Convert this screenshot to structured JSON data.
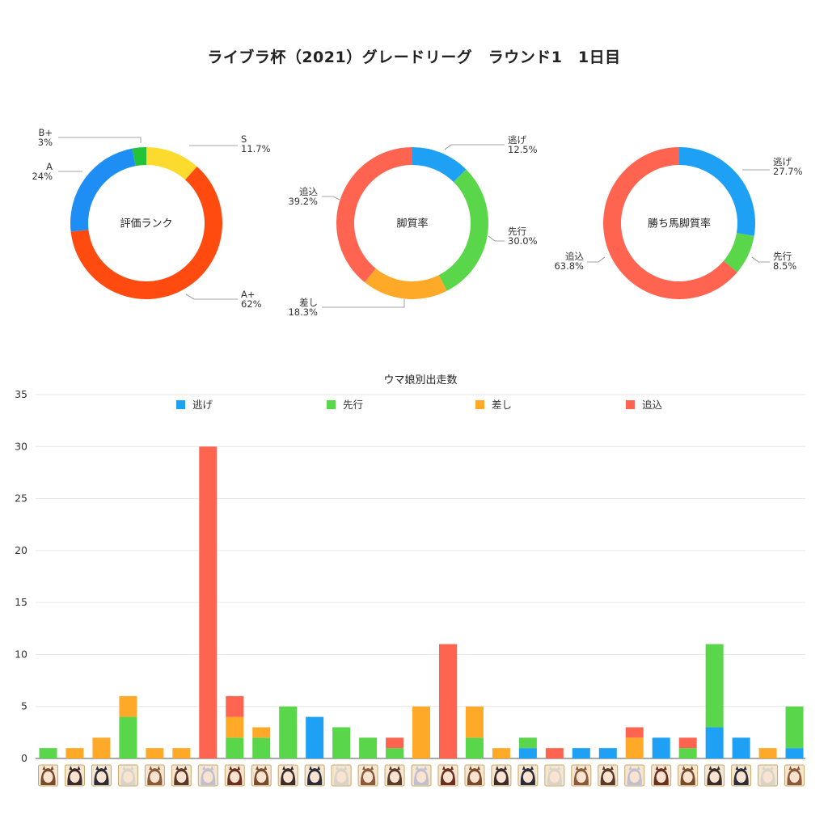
{
  "title": "ライブラ杯（2021）グレードリーグ　ラウンド1　1日目",
  "chart_data": [
    {
      "type": "pie",
      "center_label": "評価ランク",
      "slices": [
        {
          "label": "S",
          "value": 11.7,
          "display": "11.7%",
          "color": "#FCDA2E"
        },
        {
          "label": "A+",
          "value": 62,
          "display": "62%",
          "color": "#FF4A10"
        },
        {
          "label": "A",
          "value": 24,
          "display": "24%",
          "color": "#1E8EF5"
        },
        {
          "label": "B+",
          "value": 3,
          "display": "3%",
          "color": "#22C23A"
        }
      ]
    },
    {
      "type": "pie",
      "center_label": "脚質率",
      "slices": [
        {
          "label": "逃げ",
          "value": 12.5,
          "display": "12.5%",
          "color": "#1EA0F5"
        },
        {
          "label": "先行",
          "value": 30.0,
          "display": "30.0%",
          "color": "#5AD64A"
        },
        {
          "label": "差し",
          "value": 18.3,
          "display": "18.3%",
          "color": "#FFA929"
        },
        {
          "label": "追込",
          "value": 39.2,
          "display": "39.2%",
          "color": "#FF6450"
        }
      ]
    },
    {
      "type": "pie",
      "center_label": "勝ち馬脚質率",
      "slices": [
        {
          "label": "逃げ",
          "value": 27.7,
          "display": "27.7%",
          "color": "#1EA0F5"
        },
        {
          "label": "先行",
          "value": 8.5,
          "display": "8.5%",
          "color": "#5AD64A"
        },
        {
          "label": "追込",
          "value": 63.8,
          "display": "63.8%",
          "color": "#FF6450"
        }
      ]
    },
    {
      "type": "bar",
      "stacked": true,
      "title": "ウマ娘別出走数",
      "ylim": [
        0,
        35
      ],
      "yticks": [
        0,
        5,
        10,
        15,
        20,
        25,
        30,
        35
      ],
      "legend_position": "top",
      "grid": true,
      "series": [
        {
          "name": "逃げ",
          "color": "#1EA0F5",
          "values": [
            0,
            0,
            0,
            0,
            0,
            0,
            0,
            0,
            0,
            0,
            4,
            0,
            0,
            0,
            0,
            0,
            0,
            0,
            1,
            0,
            1,
            1,
            0,
            2,
            0,
            3,
            2,
            0,
            1
          ]
        },
        {
          "name": "先行",
          "color": "#5AD64A",
          "values": [
            1,
            0,
            0,
            4,
            0,
            0,
            0,
            2,
            2,
            5,
            0,
            3,
            2,
            1,
            0,
            0,
            2,
            0,
            1,
            0,
            0,
            0,
            0,
            0,
            1,
            8,
            0,
            0,
            4
          ]
        },
        {
          "name": "差し",
          "color": "#FFA929",
          "values": [
            0,
            1,
            2,
            2,
            1,
            1,
            0,
            2,
            1,
            0,
            0,
            0,
            0,
            0,
            5,
            0,
            3,
            1,
            0,
            0,
            0,
            0,
            2,
            0,
            0,
            0,
            0,
            1,
            0
          ]
        },
        {
          "name": "追込",
          "color": "#FF6450",
          "values": [
            0,
            0,
            0,
            0,
            0,
            0,
            30,
            2,
            0,
            0,
            0,
            0,
            0,
            1,
            0,
            11,
            0,
            0,
            0,
            1,
            0,
            0,
            1,
            0,
            1,
            0,
            0,
            0,
            0
          ]
        }
      ]
    }
  ]
}
